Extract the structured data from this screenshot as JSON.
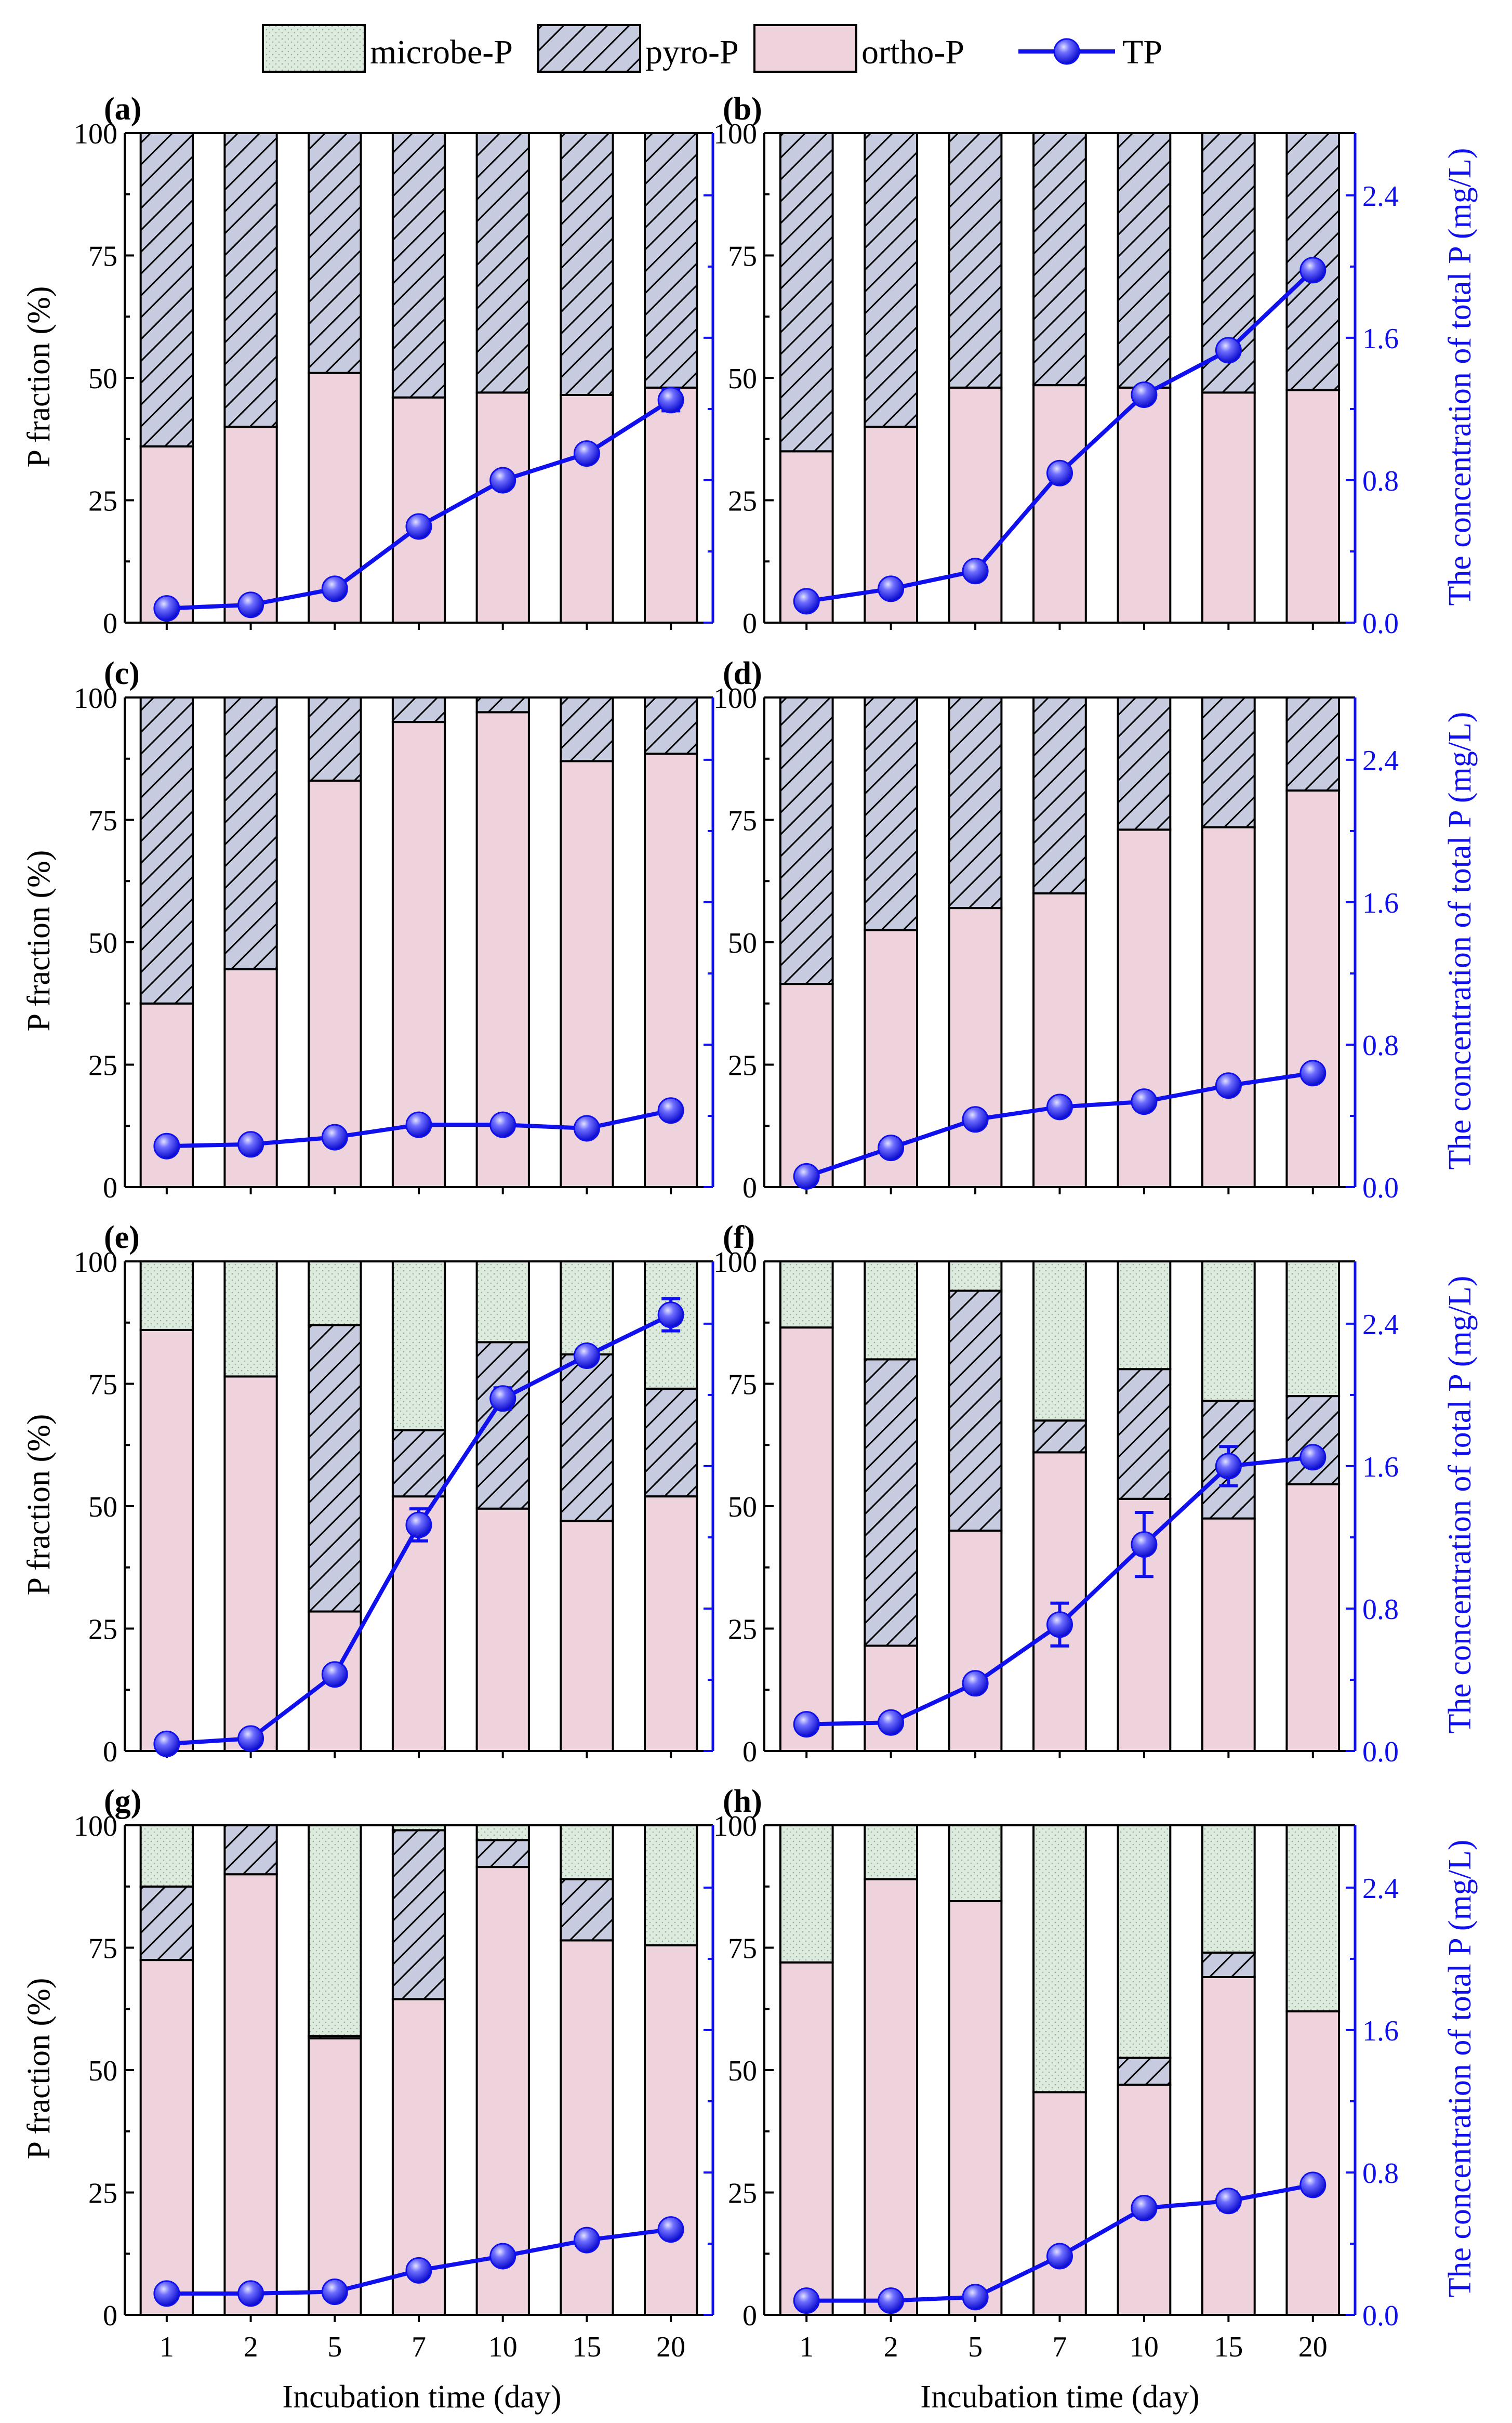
{
  "legend": [
    {
      "key": "microbe",
      "label": "microbe-P"
    },
    {
      "key": "pyro",
      "label": "pyro-P"
    },
    {
      "key": "ortho",
      "label": "ortho-P"
    },
    {
      "key": "tp",
      "label": "TP"
    }
  ],
  "colors": {
    "ortho_fill": "#EFD3DC",
    "pyro_fill": "#C6CBE0",
    "microbe_fill": "#DDEBDF",
    "microbe_dots": "#9AAE9A",
    "tp_line": "#1010EE",
    "right_axis": "#1010EE",
    "ink": "#000000"
  },
  "x_label": "Incubation time (day)",
  "y_left_label": "P fraction (%)",
  "y_right_label": "The concentration of total P (mg/L)",
  "chart_data": [
    {
      "panel": "(a)",
      "type": "bar",
      "categories": [
        "1",
        "2",
        "5",
        "7",
        "10",
        "15",
        "20"
      ],
      "ylim": [
        0,
        100
      ],
      "yticks": [
        "0",
        "25",
        "50",
        "75",
        "100"
      ],
      "y2lim": [
        0,
        2.75
      ],
      "y2ticks": [
        "0.0",
        "0.8",
        "1.6",
        "2.4"
      ],
      "series": [
        {
          "name": "ortho-P",
          "values": [
            36,
            40,
            51,
            46,
            47,
            46.5,
            48
          ]
        },
        {
          "name": "pyro-P",
          "values": [
            64,
            60,
            49,
            54,
            53,
            53.5,
            52
          ]
        },
        {
          "name": "microbe-P",
          "values": [
            0,
            0,
            0,
            0,
            0,
            0,
            0
          ]
        }
      ],
      "tp": [
        0.08,
        0.1,
        0.19,
        0.54,
        0.8,
        0.95,
        1.25
      ],
      "tp_err": [
        0,
        0,
        0,
        0.04,
        0.04,
        0.04,
        0.06
      ]
    },
    {
      "panel": "(b)",
      "type": "bar",
      "categories": [
        "1",
        "2",
        "5",
        "7",
        "10",
        "15",
        "20"
      ],
      "ylim": [
        0,
        100
      ],
      "yticks": [
        "0",
        "25",
        "50",
        "75",
        "100"
      ],
      "y2lim": [
        0,
        2.75
      ],
      "y2ticks": [
        "0.0",
        "0.8",
        "1.6",
        "2.4"
      ],
      "series": [
        {
          "name": "ortho-P",
          "values": [
            35,
            40,
            48,
            48.5,
            48,
            47,
            47.5
          ]
        },
        {
          "name": "pyro-P",
          "values": [
            65,
            60,
            52,
            51.5,
            52,
            53,
            52.5
          ]
        },
        {
          "name": "microbe-P",
          "values": [
            0,
            0,
            0,
            0,
            0,
            0,
            0
          ]
        }
      ],
      "tp": [
        0.12,
        0.19,
        0.29,
        0.84,
        1.28,
        1.53,
        1.98
      ],
      "tp_err": [
        0,
        0,
        0,
        0,
        0,
        0,
        0
      ]
    },
    {
      "panel": "(c)",
      "type": "bar",
      "categories": [
        "1",
        "2",
        "5",
        "7",
        "10",
        "15",
        "20"
      ],
      "ylim": [
        0,
        100
      ],
      "yticks": [
        "0",
        "25",
        "50",
        "75",
        "100"
      ],
      "y2lim": [
        0,
        2.75
      ],
      "y2ticks": [
        "0.0",
        "0.8",
        "1.6",
        "2.4"
      ],
      "series": [
        {
          "name": "ortho-P",
          "values": [
            37.5,
            44.5,
            83,
            95,
            97,
            87,
            88.5
          ]
        },
        {
          "name": "pyro-P",
          "values": [
            62.5,
            55.5,
            17,
            5,
            3,
            13,
            11.5
          ]
        },
        {
          "name": "microbe-P",
          "values": [
            0,
            0,
            0,
            0,
            0,
            0,
            0
          ]
        }
      ],
      "tp": [
        0.23,
        0.24,
        0.28,
        0.35,
        0.35,
        0.33,
        0.43
      ],
      "tp_err": [
        0,
        0,
        0,
        0.03,
        0,
        0,
        0
      ]
    },
    {
      "panel": "(d)",
      "type": "bar",
      "categories": [
        "1",
        "2",
        "5",
        "7",
        "10",
        "15",
        "20"
      ],
      "ylim": [
        0,
        100
      ],
      "yticks": [
        "0",
        "25",
        "50",
        "75",
        "100"
      ],
      "y2lim": [
        0,
        2.75
      ],
      "y2ticks": [
        "0.0",
        "0.8",
        "1.6",
        "2.4"
      ],
      "series": [
        {
          "name": "ortho-P",
          "values": [
            41.5,
            52.5,
            57,
            60,
            73,
            73.5,
            81
          ]
        },
        {
          "name": "pyro-P",
          "values": [
            58.5,
            47.5,
            43,
            40,
            27,
            26.5,
            19
          ]
        },
        {
          "name": "microbe-P",
          "values": [
            0,
            0,
            0,
            0,
            0,
            0,
            0
          ]
        }
      ],
      "tp": [
        0.06,
        0.22,
        0.38,
        0.45,
        0.48,
        0.57,
        0.64
      ],
      "tp_err": [
        0,
        0,
        0,
        0,
        0,
        0,
        0
      ]
    },
    {
      "panel": "(e)",
      "type": "bar",
      "categories": [
        "1",
        "2",
        "5",
        "7",
        "10",
        "15",
        "20"
      ],
      "ylim": [
        0,
        100
      ],
      "yticks": [
        "0",
        "25",
        "50",
        "75",
        "100"
      ],
      "y2lim": [
        0,
        2.75
      ],
      "y2ticks": [
        "0.0",
        "0.8",
        "1.6",
        "2.4"
      ],
      "series": [
        {
          "name": "ortho-P",
          "values": [
            86,
            76.5,
            28.5,
            52,
            49.5,
            47,
            52
          ]
        },
        {
          "name": "pyro-P",
          "values": [
            0,
            0,
            58.5,
            13.5,
            34,
            34,
            22
          ]
        },
        {
          "name": "microbe-P",
          "values": [
            14,
            23.5,
            13,
            34.5,
            16.5,
            19,
            26
          ]
        }
      ],
      "tp": [
        0.04,
        0.07,
        0.43,
        1.27,
        1.98,
        2.22,
        2.45
      ],
      "tp_err": [
        0,
        0,
        0,
        0.09,
        0.06,
        0,
        0.09
      ]
    },
    {
      "panel": "(f)",
      "type": "bar",
      "categories": [
        "1",
        "2",
        "5",
        "7",
        "10",
        "15",
        "20"
      ],
      "ylim": [
        0,
        100
      ],
      "yticks": [
        "0",
        "25",
        "50",
        "75",
        "100"
      ],
      "y2lim": [
        0,
        2.75
      ],
      "y2ticks": [
        "0.0",
        "0.8",
        "1.6",
        "2.4"
      ],
      "series": [
        {
          "name": "ortho-P",
          "values": [
            86.5,
            21.5,
            45,
            61,
            51.5,
            47.5,
            54.5
          ]
        },
        {
          "name": "pyro-P",
          "values": [
            0,
            58.5,
            49,
            6.5,
            26.5,
            24,
            18
          ]
        },
        {
          "name": "microbe-P",
          "values": [
            13.5,
            20,
            6,
            32.5,
            22,
            28.5,
            27.5
          ]
        }
      ],
      "tp": [
        0.15,
        0.16,
        0.38,
        0.71,
        1.16,
        1.6,
        1.65
      ],
      "tp_err": [
        0,
        0,
        0,
        0.12,
        0.18,
        0.11,
        0
      ]
    },
    {
      "panel": "(g)",
      "type": "bar",
      "categories": [
        "1",
        "2",
        "5",
        "7",
        "10",
        "15",
        "20"
      ],
      "ylim": [
        0,
        100
      ],
      "yticks": [
        "0",
        "25",
        "50",
        "75",
        "100"
      ],
      "y2lim": [
        0,
        2.75
      ],
      "y2ticks": [
        "0.0",
        "0.8",
        "1.6",
        "2.4"
      ],
      "series": [
        {
          "name": "ortho-P",
          "values": [
            72.5,
            90,
            56.5,
            64.5,
            91.5,
            76.5,
            75.5
          ]
        },
        {
          "name": "pyro-P",
          "values": [
            15,
            10,
            0.5,
            34.5,
            5.5,
            12.5,
            0
          ]
        },
        {
          "name": "microbe-P",
          "values": [
            12.5,
            0,
            43,
            1,
            3,
            11,
            24.5
          ]
        }
      ],
      "tp": [
        0.12,
        0.12,
        0.13,
        0.25,
        0.33,
        0.42,
        0.48
      ],
      "tp_err": [
        0,
        0,
        0,
        0,
        0,
        0,
        0
      ]
    },
    {
      "panel": "(h)",
      "type": "bar",
      "categories": [
        "1",
        "2",
        "5",
        "7",
        "10",
        "15",
        "20"
      ],
      "ylim": [
        0,
        100
      ],
      "yticks": [
        "0",
        "25",
        "50",
        "75",
        "100"
      ],
      "y2lim": [
        0,
        2.75
      ],
      "y2ticks": [
        "0.0",
        "0.8",
        "1.6",
        "2.4"
      ],
      "series": [
        {
          "name": "ortho-P",
          "values": [
            72,
            89,
            84.5,
            45.5,
            47,
            69,
            62
          ]
        },
        {
          "name": "pyro-P",
          "values": [
            0,
            0,
            0,
            0,
            5.5,
            5,
            0
          ]
        },
        {
          "name": "microbe-P",
          "values": [
            28,
            11,
            15.5,
            54.5,
            47.5,
            26,
            38
          ]
        }
      ],
      "tp": [
        0.08,
        0.08,
        0.1,
        0.33,
        0.6,
        0.64,
        0.73
      ],
      "tp_err": [
        0,
        0,
        0,
        0,
        0,
        0.05,
        0
      ]
    }
  ]
}
